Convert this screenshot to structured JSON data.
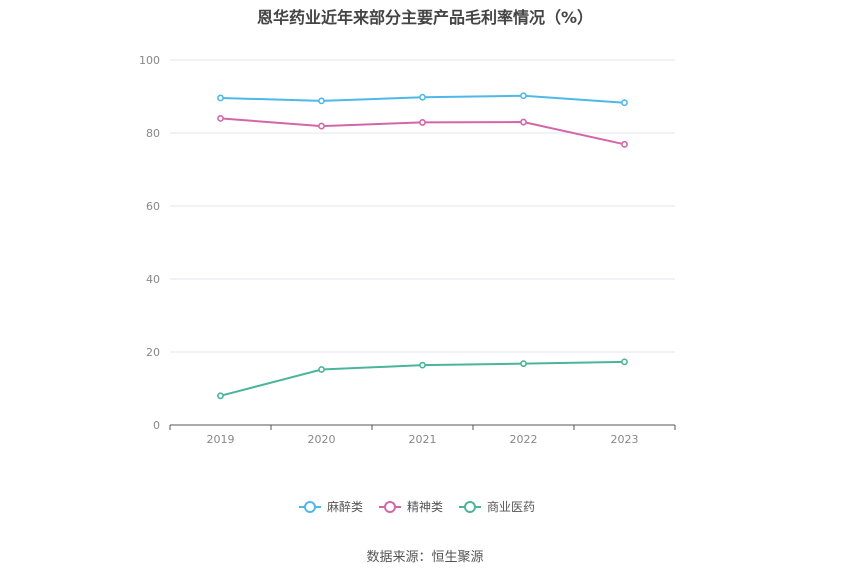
{
  "title": "恩华药业近年来部分主要产品毛利率情况（%）",
  "source": "数据来源：恒生聚源",
  "chart_data": {
    "type": "line",
    "title": "恩华药业近年来部分主要产品毛利率情况（%）",
    "x": [
      "2019",
      "2020",
      "2021",
      "2022",
      "2023"
    ],
    "ylim": [
      0,
      100
    ],
    "yticks": [
      0,
      20,
      40,
      60,
      80,
      100
    ],
    "grid": true,
    "legend_position": "bottom-center",
    "series": [
      {
        "name": "麻醉类",
        "color": "#4fb8e8",
        "values": [
          89.6,
          88.8,
          89.8,
          90.2,
          88.3
        ]
      },
      {
        "name": "精神类",
        "color": "#d366a8",
        "values": [
          84.0,
          81.9,
          82.9,
          83.0,
          76.9
        ]
      },
      {
        "name": "商业医药",
        "color": "#4ab59a",
        "values": [
          8.0,
          15.2,
          16.4,
          16.8,
          17.3
        ]
      }
    ]
  }
}
